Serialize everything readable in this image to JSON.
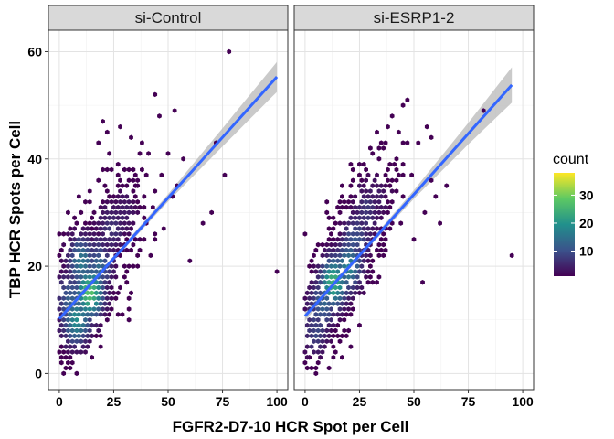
{
  "chart_data": {
    "type": "heatmap",
    "subtype": "faceted hexbin scatter with linear regression fit",
    "xlabel": "FGFR2-D7-10 HCR Spot per Cell",
    "ylabel": "TBP HCR Spots per Cell",
    "xlim": [
      -5,
      105
    ],
    "ylim": [
      -3,
      64
    ],
    "x_ticks": [
      0,
      25,
      50,
      75,
      100
    ],
    "y_ticks": [
      0,
      20,
      40,
      60
    ],
    "grid": true,
    "legend": {
      "title": "count",
      "position": "right",
      "ticks": [
        10,
        20,
        30
      ],
      "range": [
        1,
        38
      ],
      "colors": [
        "#440154",
        "#3b528b",
        "#21908c",
        "#5dc963",
        "#fde725"
      ]
    },
    "fit_color": "#3366ff",
    "ci_color": "#bdbdbd",
    "point_color": "#440154",
    "panels": [
      {
        "name": "si-Control",
        "fit": {
          "x": [
            0,
            100
          ],
          "y": [
            10.2,
            55.3
          ]
        },
        "ci_halfwidth": {
          "x": [
            0,
            25,
            50,
            75,
            100
          ],
          "w": [
            0.9,
            0.4,
            0.7,
            1.7,
            2.8
          ]
        },
        "core": {
          "x": [
            14,
            8,
            10,
            18,
            24,
            5,
            30
          ],
          "y": [
            15,
            10,
            21,
            20,
            27,
            14,
            30
          ],
          "count": [
            32,
            22,
            18,
            15,
            8,
            14,
            5
          ]
        },
        "outliers": {
          "x": [
            78,
            72,
            70,
            76,
            66,
            44,
            46,
            38,
            40,
            33,
            100,
            28,
            20,
            22,
            18,
            36,
            50,
            52,
            57,
            48,
            44,
            42,
            2,
            1,
            0,
            5,
            60,
            54
          ],
          "y": [
            60,
            43,
            30,
            37,
            28,
            52,
            48,
            43,
            37,
            44,
            19,
            46,
            47,
            45,
            43,
            35,
            41,
            33,
            40,
            27,
            25,
            22,
            0,
            2,
            4,
            1,
            21,
            35
          ],
          "count": [
            1,
            1,
            1,
            1,
            1,
            1,
            1,
            1,
            1,
            1,
            1,
            1,
            1,
            1,
            1,
            1,
            1,
            1,
            1,
            1,
            1,
            1,
            1,
            1,
            1,
            1,
            1,
            1
          ]
        }
      },
      {
        "name": "si-ESRP1-2",
        "fit": {
          "x": [
            0,
            95
          ],
          "y": [
            10.7,
            53.8
          ]
        },
        "ci_halfwidth": {
          "x": [
            0,
            25,
            50,
            75,
            95
          ],
          "w": [
            0.9,
            0.4,
            0.8,
            2.0,
            3.3
          ]
        },
        "core": {
          "x": [
            13,
            20,
            8,
            23,
            28,
            5,
            32
          ],
          "y": [
            17,
            20,
            13,
            25,
            30,
            8,
            33
          ],
          "count": [
            28,
            20,
            14,
            12,
            8,
            10,
            5
          ]
        },
        "outliers": {
          "x": [
            82,
            95,
            56,
            52,
            47,
            60,
            55,
            45,
            62,
            50,
            58,
            40,
            38,
            2,
            0,
            5,
            54,
            65
          ],
          "y": [
            49,
            22,
            46,
            43,
            51,
            33,
            30,
            50,
            28,
            25,
            36,
            48,
            46,
            3,
            2,
            0,
            17,
            35
          ],
          "count": [
            1,
            1,
            1,
            1,
            1,
            1,
            1,
            1,
            1,
            1,
            1,
            1,
            1,
            1,
            1,
            1,
            1,
            1
          ]
        }
      }
    ]
  }
}
